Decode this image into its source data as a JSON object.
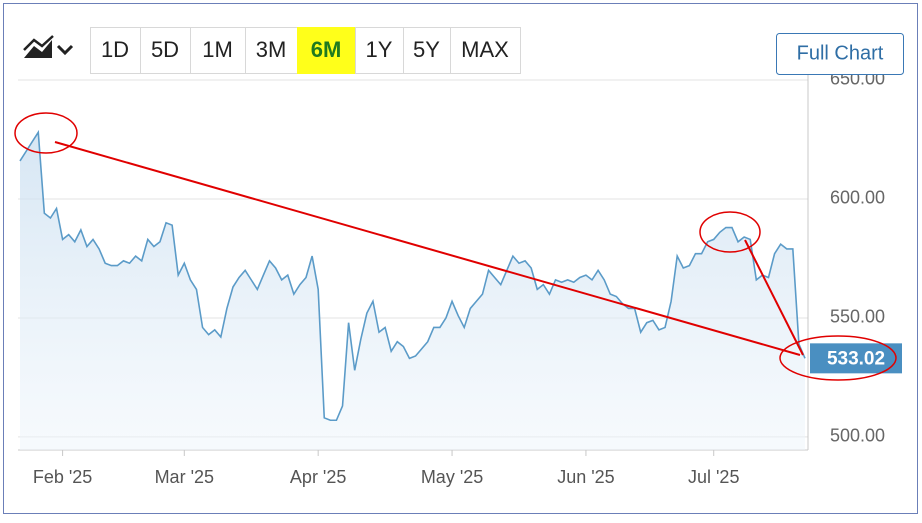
{
  "ui": {
    "range_buttons": [
      "1D",
      "5D",
      "1M",
      "3M",
      "6M",
      "1Y",
      "5Y",
      "MAX"
    ],
    "selected_range": 4,
    "full_chart": "Full Chart"
  },
  "chart_data": {
    "type": "area-line",
    "series": [
      {
        "color": "#5b9bc8",
        "values": [
          616,
          620,
          624,
          628,
          594,
          592,
          596,
          583,
          585,
          582,
          587,
          580,
          583,
          579,
          573,
          572,
          572,
          574,
          573,
          576,
          574,
          583,
          580,
          582,
          590,
          589,
          568,
          573,
          566,
          562,
          546,
          543,
          545,
          542,
          554,
          563,
          567,
          570,
          566,
          562,
          568,
          574,
          571,
          566,
          568,
          560,
          564,
          567,
          576,
          562,
          508,
          507,
          507,
          513,
          548,
          528,
          541,
          552,
          557,
          544,
          546,
          536,
          540,
          538,
          533,
          534,
          537,
          540,
          546,
          546,
          550,
          557,
          551,
          546,
          554,
          557,
          560,
          570,
          567,
          564,
          570,
          576,
          573,
          574,
          571,
          562,
          564,
          560,
          566,
          565,
          566,
          565,
          567,
          568,
          566,
          570,
          566,
          560,
          559,
          556,
          554,
          554,
          544,
          548,
          549,
          545,
          546,
          557,
          576,
          571,
          572,
          577,
          577,
          582,
          583,
          586,
          588,
          588,
          582,
          584,
          583,
          566,
          568,
          567,
          577,
          581,
          579,
          579,
          539,
          533.02
        ]
      }
    ],
    "last_price_color": "#4a8fc1",
    "ylim": [
      494.5,
      654.2
    ],
    "yticks": [
      {
        "value": 500,
        "label": "500.00"
      },
      {
        "value": 550,
        "label": "550.00"
      },
      {
        "value": 600,
        "label": "600.00"
      },
      {
        "value": 650,
        "label": "650.00"
      }
    ],
    "xticks": [
      {
        "value": 7,
        "label": "Feb '25"
      },
      {
        "value": 27,
        "label": "Mar '25"
      },
      {
        "value": 49,
        "label": "Apr '25"
      },
      {
        "value": 71,
        "label": "May '25"
      },
      {
        "value": 93,
        "label": "Jun '25"
      },
      {
        "value": 114,
        "label": "Jul '25"
      }
    ],
    "grid": true
  }
}
